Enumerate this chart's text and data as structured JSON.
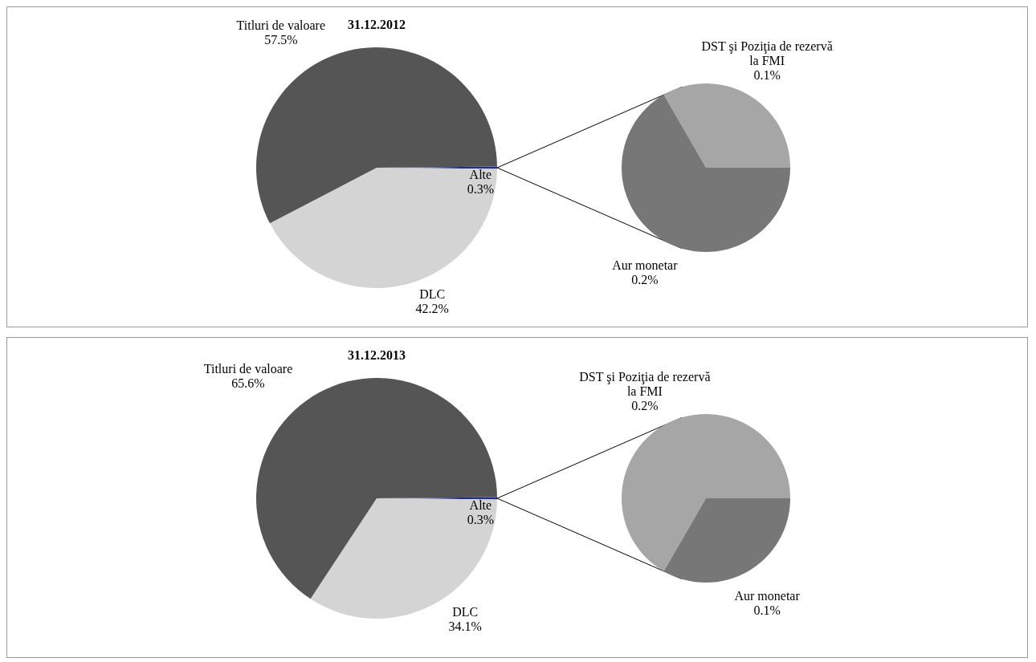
{
  "chart_data": [
    {
      "type": "pie",
      "title": "31.12.2012",
      "categories": [
        "Alte",
        "DLC",
        "Titluri de valoare"
      ],
      "values": [
        0.3,
        42.2,
        57.5
      ],
      "value_labels": [
        "0.3%",
        "42.2%",
        "57.5%"
      ],
      "colors": [
        "#1f2f8f",
        "#d4d4d4",
        "#555555"
      ]
    },
    {
      "type": "pie",
      "categories": [
        "DST şi Poziţia de rezervă la FMI",
        "Aur monetar"
      ],
      "values": [
        0.1,
        0.2
      ],
      "value_labels": [
        "0.1%",
        "0.2%"
      ],
      "colors": [
        "#a6a6a6",
        "#777777"
      ]
    },
    {
      "type": "pie",
      "title": "31.12.2013",
      "categories": [
        "Alte",
        "DLC",
        "Titluri de valoare"
      ],
      "values": [
        0.3,
        34.1,
        65.6
      ],
      "value_labels": [
        "0.3%",
        "34.1%",
        "65.6%"
      ],
      "colors": [
        "#1f2f8f",
        "#d4d4d4",
        "#555555"
      ]
    },
    {
      "type": "pie",
      "categories": [
        "DST şi Poziţia de rezervă la FMI",
        "Aur monetar"
      ],
      "values": [
        0.2,
        0.1
      ],
      "value_labels": [
        "0.2%",
        "0.1%"
      ],
      "colors": [
        "#a6a6a6",
        "#777777"
      ]
    }
  ]
}
